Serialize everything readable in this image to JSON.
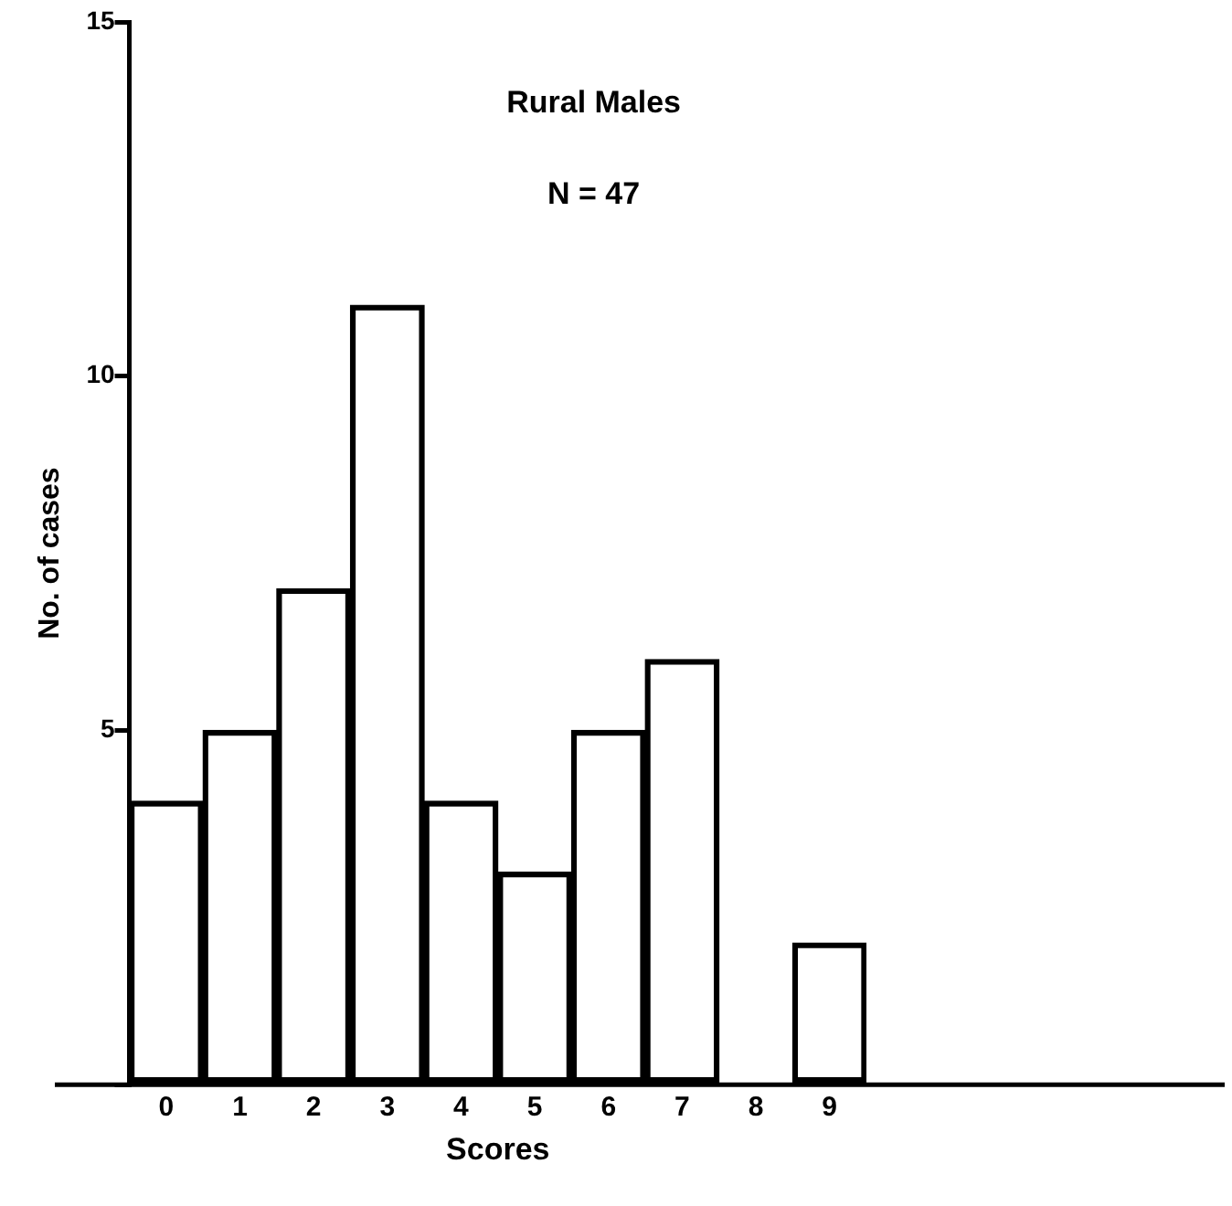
{
  "chart_data": {
    "type": "bar",
    "title": "Rural Males",
    "subtitle": "N = 47",
    "xlabel": "Scores",
    "ylabel": "No. of cases",
    "categories": [
      "0",
      "1",
      "2",
      "3",
      "4",
      "5",
      "6",
      "7",
      "8",
      "9"
    ],
    "values": [
      4,
      5,
      7,
      11,
      4,
      3,
      5,
      6,
      0,
      2
    ],
    "color": "#000000",
    "ylim": [
      0,
      15
    ],
    "yticks": [
      {
        "value": 0,
        "label": null
      },
      5,
      10,
      15
    ],
    "grid": false,
    "legend": false
  }
}
